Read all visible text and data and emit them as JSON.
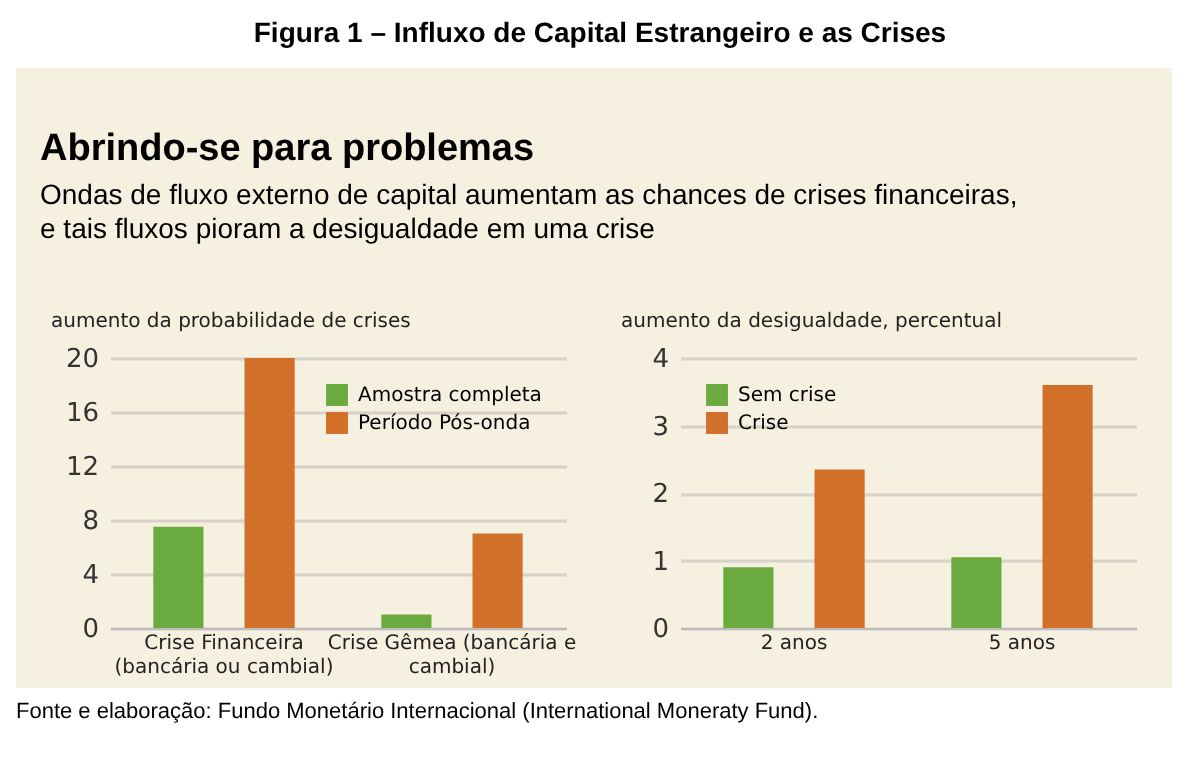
{
  "chart_data": [
    {
      "type": "bar",
      "title": "Figura 1 – Influxo de Capital Estrangeiro e as Crises",
      "subtitle": "Abrindo-se para problemas",
      "annotations": [
        "Ondas de fluxo externo de capital aumentam as chances de crises financeiras, e tais fluxos pioram a desigualdade em uma crise",
        "Fonte e elaboração: Fundo Monetário Internacional (International Moneraty Fund)."
      ],
      "ylabel": "aumento da probabilidade de crises",
      "categories": [
        "Crise Financeira (bancária ou cambial)",
        "Crise Gêmea (bancária e cambial)"
      ],
      "series": [
        {
          "name": "Amostra completa",
          "color": "#6aaa3f",
          "values": [
            7.5,
            1.0
          ]
        },
        {
          "name": "Período Pós-onda",
          "color": "#d2702a",
          "values": [
            20,
            7
          ]
        }
      ],
      "ylim": [
        0,
        20
      ],
      "yticks": [
        0,
        4,
        8,
        12,
        16,
        20
      ],
      "grid": "y",
      "legend": "top right"
    },
    {
      "type": "bar",
      "ylabel": "aumento da desigualdade, percentual",
      "categories": [
        "2 anos",
        "5 anos"
      ],
      "series": [
        {
          "name": "Sem crise",
          "color": "#6aaa3f",
          "values": [
            0.9,
            1.05
          ]
        },
        {
          "name": "Crise",
          "color": "#d2702a",
          "values": [
            2.35,
            3.6
          ]
        }
      ],
      "ylim": [
        0,
        4
      ],
      "yticks": [
        0,
        1,
        2,
        3,
        4
      ],
      "grid": "y",
      "legend": "top left"
    }
  ]
}
